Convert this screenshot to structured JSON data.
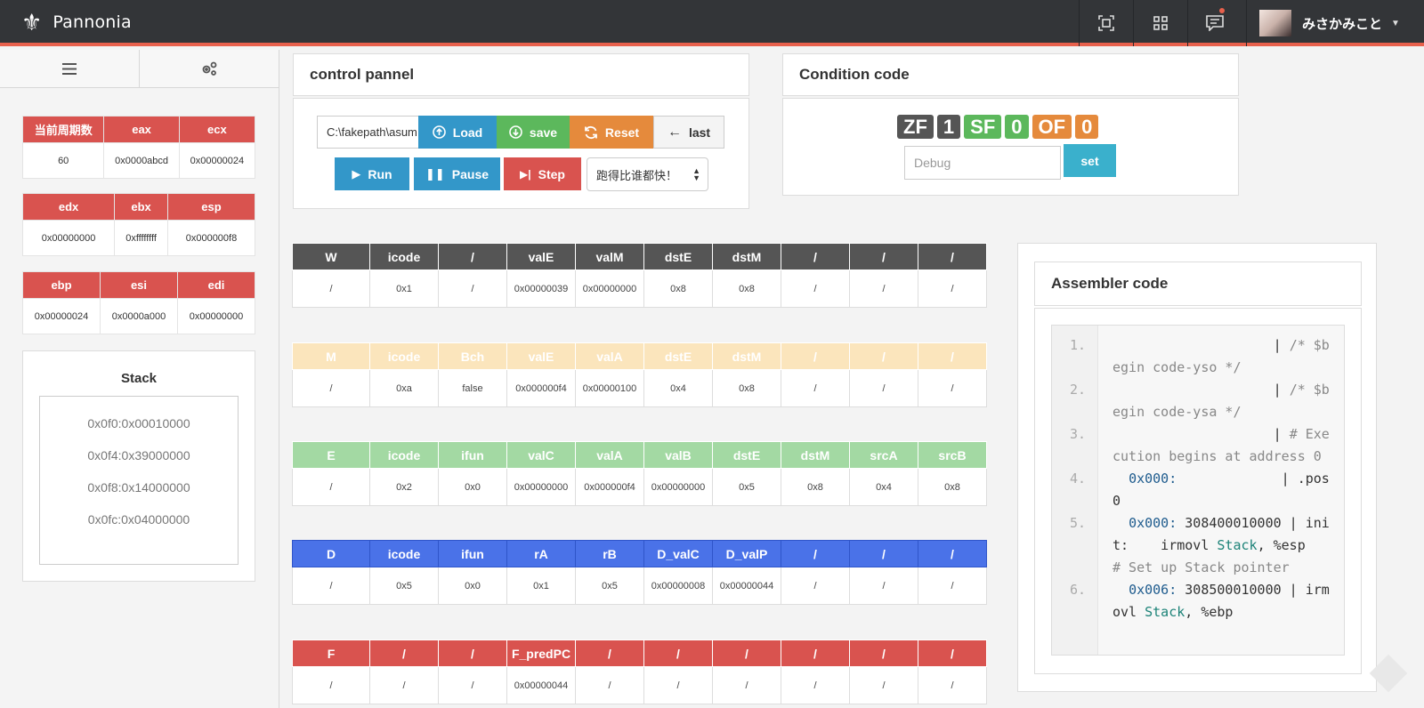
{
  "app": {
    "name": "Pannonia"
  },
  "topbar": {
    "user_name": "みさかみこと"
  },
  "registers": {
    "groups": [
      {
        "headers": [
          "当前周期数",
          "eax",
          "ecx"
        ],
        "values": [
          "60",
          "0x0000abcd",
          "0x00000024"
        ]
      },
      {
        "headers": [
          "edx",
          "ebx",
          "esp"
        ],
        "values": [
          "0x00000000",
          "0xffffffff",
          "0x000000f8"
        ]
      },
      {
        "headers": [
          "ebp",
          "esi",
          "edi"
        ],
        "values": [
          "0x00000024",
          "0x0000a000",
          "0x00000000"
        ]
      }
    ]
  },
  "stack": {
    "title": "Stack",
    "items": [
      "0x0f0:0x00010000",
      "0x0f4:0x39000000",
      "0x0f8:0x14000000",
      "0x0fc:0x04000000"
    ]
  },
  "control": {
    "title": "control pannel",
    "file_value": "C:\\fakepath\\asum",
    "load": "Load",
    "save": "save",
    "reset": "Reset",
    "last": "last",
    "run": "Run",
    "pause": "Pause",
    "step": "Step",
    "speed_selected": "跑得比谁都快！"
  },
  "condition": {
    "title": "Condition code",
    "codes": [
      {
        "flag": "ZF",
        "value": "1"
      },
      {
        "flag": "SF",
        "value": "0"
      },
      {
        "flag": "OF",
        "value": "0"
      }
    ],
    "debug_placeholder": "Debug",
    "set": "set"
  },
  "pipeline": {
    "W": {
      "headers": [
        "W",
        "icode",
        "/",
        "valE",
        "valM",
        "dstE",
        "dstM",
        "/",
        "/",
        "/"
      ],
      "values": [
        "/",
        "0x1",
        "/",
        "0x00000039",
        "0x00000000",
        "0x8",
        "0x8",
        "/",
        "/",
        "/"
      ]
    },
    "M": {
      "headers": [
        "M",
        "icode",
        "Bch",
        "valE",
        "valA",
        "dstE",
        "dstM",
        "/",
        "/",
        "/"
      ],
      "values": [
        "/",
        "0xa",
        "false",
        "0x000000f4",
        "0x00000100",
        "0x4",
        "0x8",
        "/",
        "/",
        "/"
      ]
    },
    "E": {
      "headers": [
        "E",
        "icode",
        "ifun",
        "valC",
        "valA",
        "valB",
        "dstE",
        "dstM",
        "srcA",
        "srcB"
      ],
      "values": [
        "/",
        "0x2",
        "0x0",
        "0x00000000",
        "0x000000f4",
        "0x00000000",
        "0x5",
        "0x8",
        "0x4",
        "0x8"
      ]
    },
    "D": {
      "headers": [
        "D",
        "icode",
        "ifun",
        "rA",
        "rB",
        "D_valC",
        "D_valP",
        "/",
        "/",
        "/"
      ],
      "values": [
        "/",
        "0x5",
        "0x0",
        "0x1",
        "0x5",
        "0x00000008",
        "0x00000044",
        "/",
        "/",
        "/"
      ]
    },
    "F": {
      "headers": [
        "F",
        "/",
        "/",
        "F_predPC",
        "/",
        "/",
        "/",
        "/",
        "/",
        "/"
      ],
      "values": [
        "/",
        "/",
        "/",
        "0x00000044",
        "/",
        "/",
        "/",
        "/",
        "/",
        "/"
      ]
    }
  },
  "assembler": {
    "title": "Assembler code",
    "lines": [
      {
        "n": "1.",
        "parts": [
          {
            "t": "                    | ",
            "c": ""
          },
          {
            "t": "/* $begin code-yso */",
            "c": "cm"
          }
        ]
      },
      {
        "n": "2.",
        "parts": [
          {
            "t": "                    | ",
            "c": ""
          },
          {
            "t": "/* $begin code-ysa */",
            "c": "cm"
          }
        ]
      },
      {
        "n": "3.",
        "parts": [
          {
            "t": "                    | ",
            "c": ""
          },
          {
            "t": "# Execution begins at address 0",
            "c": "cm"
          }
        ]
      },
      {
        "n": "4.",
        "parts": [
          {
            "t": "  0x000:",
            "c": "ad"
          },
          {
            "t": "             | .pos 0",
            "c": ""
          }
        ]
      },
      {
        "n": "5.",
        "parts": [
          {
            "t": "  0x000:",
            "c": "ad"
          },
          {
            "t": " 308400010000 | init:    irmovl ",
            "c": ""
          },
          {
            "t": "Stack",
            "c": "kw"
          },
          {
            "t": ", %esp      ",
            "c": ""
          },
          {
            "t": "# Set up Stack pointer",
            "c": "cm"
          }
        ]
      },
      {
        "n": "6.",
        "parts": [
          {
            "t": "  0x006:",
            "c": "ad"
          },
          {
            "t": " 308500010000 | irmovl ",
            "c": ""
          },
          {
            "t": "Stack",
            "c": "kw"
          },
          {
            "t": ", %ebp",
            "c": ""
          }
        ]
      }
    ]
  }
}
